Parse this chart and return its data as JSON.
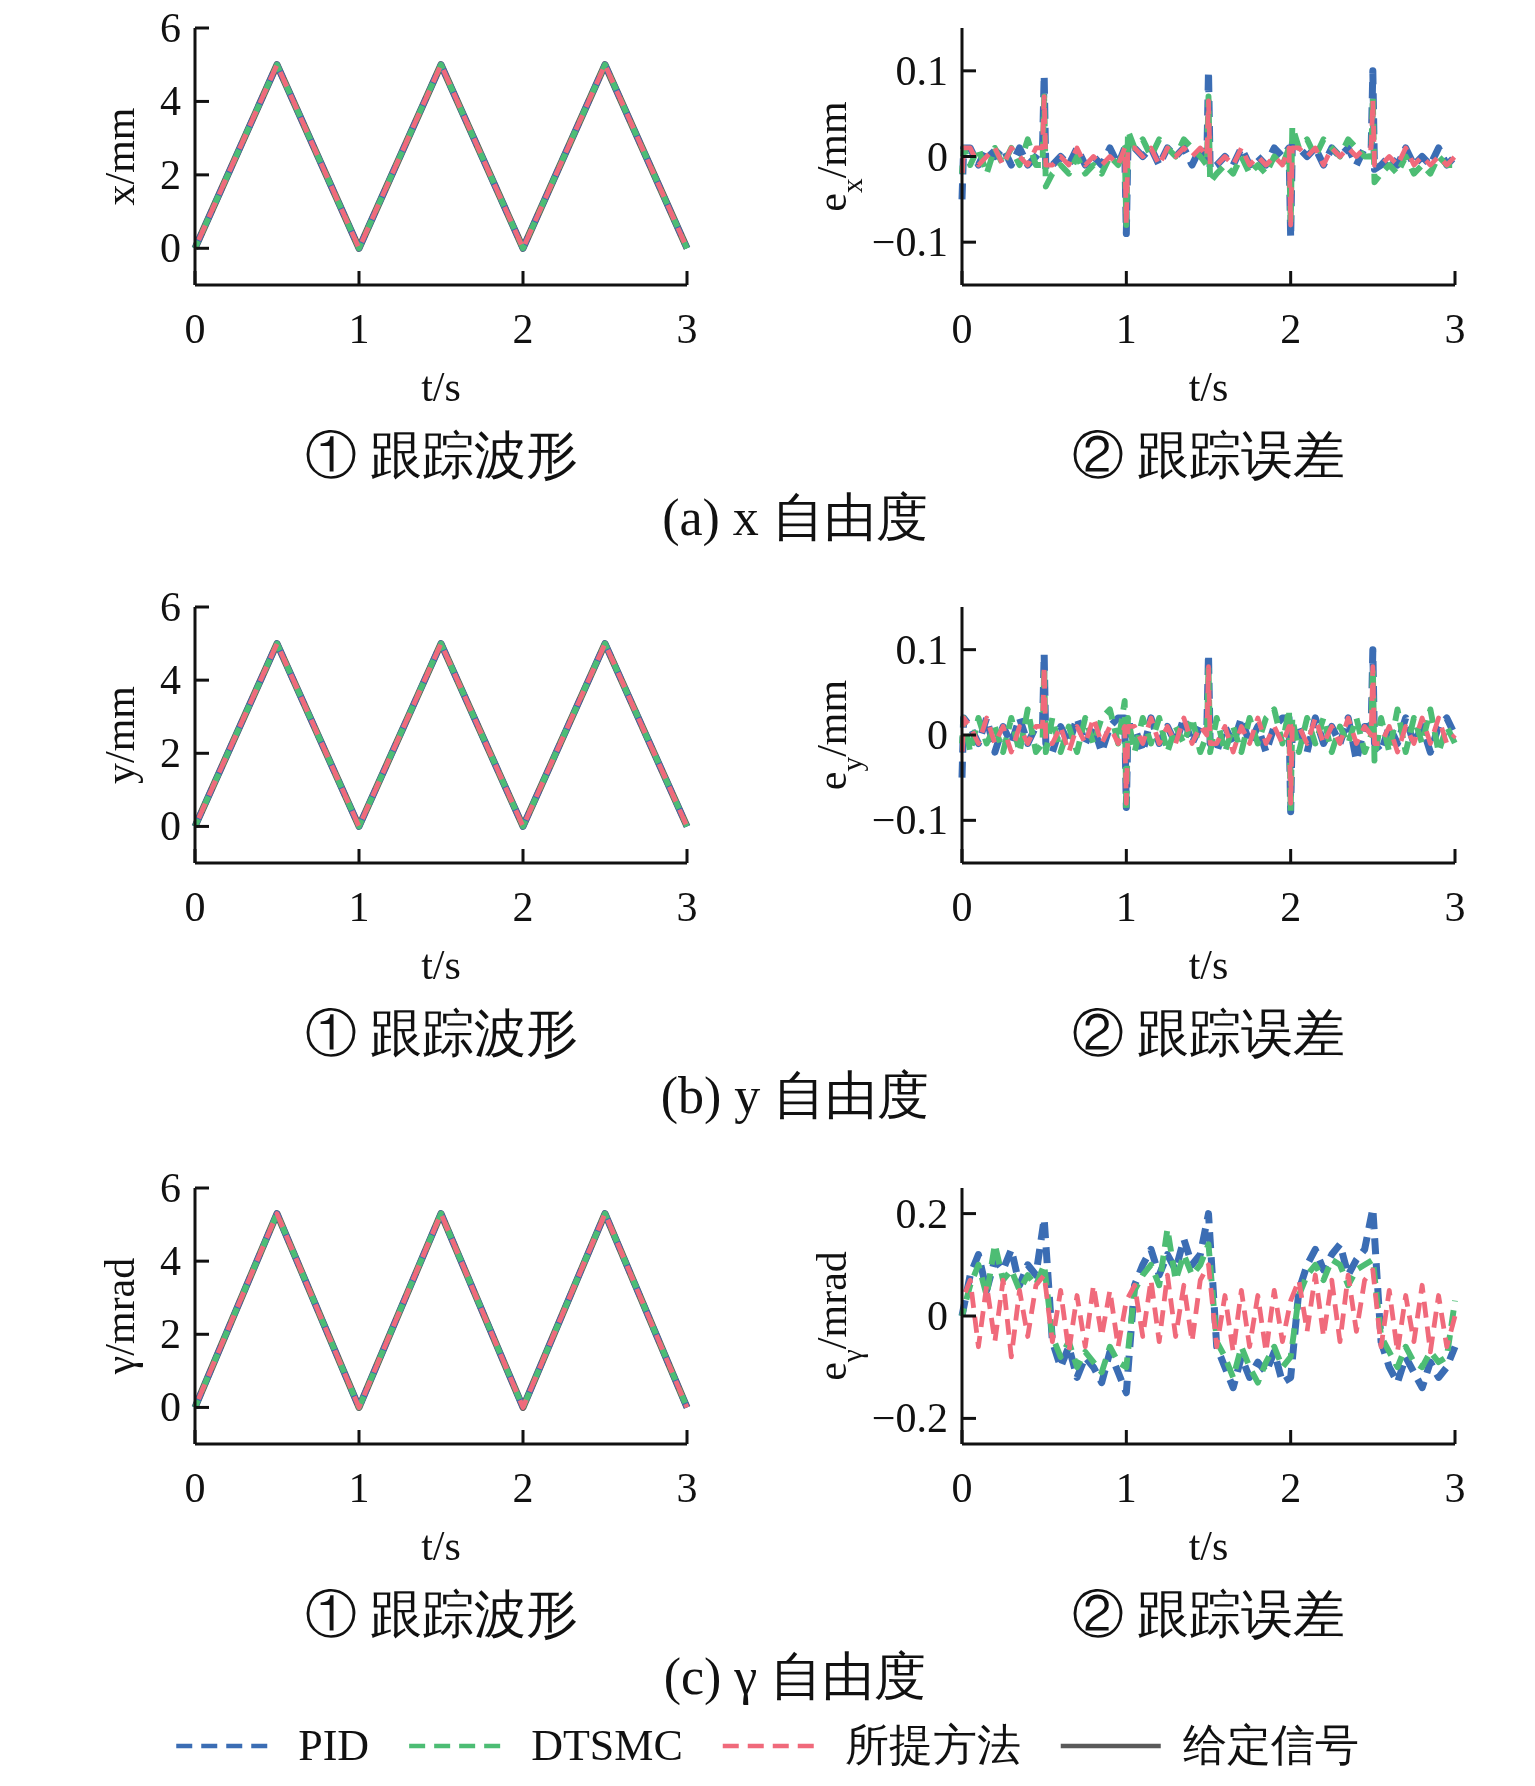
{
  "chart_data": [
    {
      "type": "line",
      "title": "① 跟踪波形",
      "xlabel": "t/s",
      "ylabel": "x/mm",
      "annotations": [
        "(a) x 自由度"
      ],
      "xlim": [
        0,
        3
      ],
      "xticks": [
        0,
        1,
        2,
        3
      ],
      "ylim": [
        -1,
        6
      ],
      "yticks": [
        0,
        2,
        4,
        6
      ],
      "x": [
        0,
        0.5,
        1,
        1.5,
        2,
        2.5,
        3
      ],
      "series": [
        {
          "color": "#3b6db4",
          "line_style": "dashed",
          "values": [
            0,
            5,
            0,
            5,
            0,
            5,
            0
          ]
        },
        {
          "color": "#4dbd74",
          "line_style": "dashed",
          "values": [
            0,
            5,
            0,
            5,
            0,
            5,
            0
          ]
        },
        {
          "color": "#f06a7b",
          "line_style": "dashed",
          "values": [
            0,
            5,
            0,
            5,
            0,
            5,
            0
          ]
        },
        {
          "color": "#5a5a5a",
          "line_style": "solid",
          "values": [
            0,
            5,
            0,
            5,
            0,
            5,
            0
          ]
        }
      ]
    },
    {
      "type": "line",
      "title": "② 跟踪误差",
      "xlabel": "t/s",
      "ylabel": "e$_{x}$/mm",
      "xlim": [
        0,
        3
      ],
      "xticks": [
        0,
        1,
        2,
        3
      ],
      "ylim": [
        -0.15,
        0.15
      ],
      "yticks": [
        -0.1,
        0,
        0.1
      ],
      "x": [
        0,
        0.01,
        0.05,
        0.1,
        0.15,
        0.2,
        0.25,
        0.3,
        0.35,
        0.4,
        0.45,
        0.49,
        0.5,
        0.51,
        0.55,
        0.6,
        0.65,
        0.7,
        0.75,
        0.8,
        0.85,
        0.9,
        0.95,
        0.99,
        1.0,
        1.01,
        1.05,
        1.1,
        1.15,
        1.2,
        1.25,
        1.3,
        1.35,
        1.4,
        1.45,
        1.49,
        1.5,
        1.51,
        1.55,
        1.6,
        1.65,
        1.7,
        1.75,
        1.8,
        1.85,
        1.9,
        1.95,
        1.99,
        2.0,
        2.01,
        2.05,
        2.1,
        2.15,
        2.2,
        2.25,
        2.3,
        2.35,
        2.4,
        2.45,
        2.49,
        2.5,
        2.51,
        2.55,
        2.6,
        2.65,
        2.7,
        2.75,
        2.8,
        2.85,
        2.9,
        2.95,
        3.0
      ],
      "series": [
        {
          "color": "#3b6db4",
          "line_style": "dashed",
          "values": [
            -0.05,
            0.01,
            0.01,
            -0.01,
            0.01,
            0,
            0.01,
            -0.01,
            0.01,
            -0.01,
            0,
            0.01,
            0.095,
            -0.015,
            -0.01,
            0,
            -0.01,
            0.01,
            -0.01,
            0,
            -0.01,
            0.01,
            -0.01,
            0.01,
            -0.09,
            0.015,
            0.01,
            0,
            0.01,
            -0.01,
            0.01,
            0,
            0.01,
            -0.01,
            0.01,
            0,
            0.1,
            -0.015,
            -0.01,
            0,
            -0.01,
            0.01,
            -0.01,
            0,
            -0.01,
            0.01,
            0,
            0.01,
            -0.095,
            0.015,
            0.01,
            0,
            0.01,
            -0.01,
            0.01,
            0,
            0.01,
            -0.01,
            0.01,
            0.01,
            0.1,
            -0.015,
            -0.01,
            0,
            -0.01,
            0.01,
            -0.01,
            0,
            -0.01,
            0.01,
            -0.01,
            0
          ]
        },
        {
          "color": "#4dbd74",
          "line_style": "dashed",
          "values": [
            -0.02,
            0.01,
            -0.01,
            0.01,
            -0.02,
            0.01,
            -0.01,
            0.01,
            -0.01,
            0.02,
            -0.01,
            -0.01,
            0.07,
            -0.035,
            -0.02,
            -0.01,
            -0.02,
            0,
            -0.02,
            -0.01,
            -0.02,
            0,
            -0.01,
            0.01,
            -0.08,
            0.03,
            0.01,
            0.02,
            0,
            0.02,
            0.01,
            0,
            0.02,
            0.01,
            0,
            -0.01,
            0.07,
            -0.03,
            -0.02,
            -0.01,
            -0.02,
            0,
            -0.02,
            -0.01,
            -0.02,
            0,
            -0.01,
            0.01,
            -0.08,
            0.035,
            0.01,
            0.02,
            0,
            0.02,
            0.01,
            0,
            0.02,
            0.01,
            0,
            0,
            0.07,
            -0.03,
            -0.02,
            -0.01,
            -0.02,
            0,
            -0.02,
            -0.01,
            -0.02,
            0,
            -0.01,
            -0.01
          ]
        },
        {
          "color": "#f06a7b",
          "line_style": "dashed",
          "values": [
            -0.03,
            0.01,
            0.01,
            -0.01,
            0,
            0.01,
            -0.01,
            0.01,
            0,
            -0.01,
            0.01,
            0.01,
            0.07,
            -0.01,
            -0.01,
            0,
            -0.01,
            0.01,
            -0.01,
            0,
            -0.01,
            0,
            -0.01,
            0.01,
            -0.08,
            0.01,
            0.01,
            0,
            0.01,
            -0.01,
            0.01,
            0,
            0.01,
            0,
            0.01,
            0,
            0.065,
            -0.01,
            -0.01,
            0,
            -0.01,
            0.01,
            -0.01,
            0,
            -0.01,
            0,
            -0.01,
            0.01,
            -0.08,
            0.01,
            0.01,
            0,
            0.01,
            -0.01,
            0.01,
            0,
            0.01,
            0,
            0.01,
            0.01,
            0.065,
            -0.01,
            -0.01,
            0,
            -0.01,
            0.01,
            -0.01,
            0,
            -0.01,
            0,
            -0.01,
            0
          ]
        }
      ]
    },
    {
      "type": "line",
      "title": "① 跟踪波形",
      "xlabel": "t/s",
      "ylabel": "y/mm",
      "annotations": [
        "(b) y 自由度"
      ],
      "xlim": [
        0,
        3
      ],
      "xticks": [
        0,
        1,
        2,
        3
      ],
      "ylim": [
        -1,
        6
      ],
      "yticks": [
        0,
        2,
        4,
        6
      ],
      "x": [
        0,
        0.5,
        1,
        1.5,
        2,
        2.5,
        3
      ],
      "series": [
        {
          "color": "#3b6db4",
          "line_style": "dashed",
          "values": [
            0,
            5,
            0,
            5,
            0,
            5,
            0
          ]
        },
        {
          "color": "#4dbd74",
          "line_style": "dashed",
          "values": [
            0,
            5,
            0,
            5,
            0,
            5,
            0
          ]
        },
        {
          "color": "#f06a7b",
          "line_style": "dashed",
          "values": [
            0,
            5,
            0,
            5,
            0,
            5,
            0
          ]
        },
        {
          "color": "#5a5a5a",
          "line_style": "solid",
          "values": [
            0,
            5,
            0,
            5,
            0,
            5,
            0
          ]
        }
      ]
    },
    {
      "type": "line",
      "title": "② 跟踪误差",
      "xlabel": "t/s",
      "ylabel": "e$_{y}$/mm",
      "xlim": [
        0,
        3
      ],
      "xticks": [
        0,
        1,
        2,
        3
      ],
      "ylim": [
        -0.15,
        0.15
      ],
      "yticks": [
        -0.1,
        0,
        0.1
      ],
      "x": [
        0,
        0.01,
        0.05,
        0.1,
        0.15,
        0.2,
        0.25,
        0.3,
        0.35,
        0.4,
        0.45,
        0.49,
        0.5,
        0.51,
        0.55,
        0.6,
        0.65,
        0.7,
        0.75,
        0.8,
        0.85,
        0.9,
        0.95,
        0.99,
        1.0,
        1.01,
        1.05,
        1.1,
        1.15,
        1.2,
        1.25,
        1.3,
        1.35,
        1.4,
        1.45,
        1.49,
        1.5,
        1.51,
        1.55,
        1.6,
        1.65,
        1.7,
        1.75,
        1.8,
        1.85,
        1.9,
        1.95,
        1.99,
        2.0,
        2.01,
        2.05,
        2.1,
        2.15,
        2.2,
        2.25,
        2.3,
        2.35,
        2.4,
        2.45,
        2.49,
        2.5,
        2.51,
        2.55,
        2.6,
        2.65,
        2.7,
        2.75,
        2.8,
        2.85,
        2.9,
        2.95,
        3.0
      ],
      "series": [
        {
          "color": "#3b6db4",
          "line_style": "dashed",
          "values": [
            -0.05,
            0.02,
            0.01,
            -0.01,
            0.02,
            -0.02,
            0.01,
            -0.01,
            0.02,
            -0.01,
            0.01,
            0.01,
            0.095,
            -0.01,
            -0.02,
            0.01,
            -0.01,
            0.02,
            -0.01,
            0.01,
            -0.02,
            0.01,
            0.02,
            0.02,
            -0.085,
            0.01,
            0.01,
            -0.02,
            0.02,
            -0.01,
            0.01,
            -0.01,
            0.02,
            -0.01,
            0.01,
            0.01,
            0.095,
            -0.01,
            -0.02,
            0.01,
            -0.01,
            0.02,
            -0.01,
            0.01,
            -0.02,
            0.01,
            0.02,
            0.02,
            -0.09,
            0.01,
            0.01,
            -0.02,
            0.02,
            -0.01,
            0.01,
            -0.01,
            0.02,
            -0.03,
            0.01,
            0.01,
            0.1,
            -0.01,
            -0.02,
            0.01,
            -0.01,
            0.02,
            -0.01,
            0.01,
            -0.02,
            0.01,
            0.02,
            0
          ]
        },
        {
          "color": "#4dbd74",
          "line_style": "dashed",
          "values": [
            -0.01,
            0.02,
            -0.02,
            0.02,
            -0.01,
            0.01,
            -0.02,
            0.02,
            -0.02,
            0.03,
            -0.02,
            -0.01,
            0.08,
            -0.02,
            0.02,
            -0.02,
            0.01,
            -0.02,
            0.02,
            -0.01,
            0.02,
            0.03,
            -0.01,
            0.04,
            -0.09,
            0.02,
            -0.02,
            0.02,
            -0.01,
            0.02,
            -0.02,
            0.01,
            -0.01,
            0.02,
            -0.02,
            0,
            0.08,
            -0.02,
            0.02,
            -0.02,
            0.01,
            -0.02,
            0.02,
            -0.01,
            0.02,
            0.03,
            -0.01,
            0.03,
            -0.09,
            0.02,
            -0.02,
            0.02,
            -0.01,
            0.02,
            -0.02,
            0.01,
            -0.01,
            0.02,
            -0.02,
            0,
            0.08,
            -0.03,
            0.02,
            -0.02,
            0.03,
            -0.02,
            0.02,
            -0.01,
            0.03,
            -0.02,
            0.01,
            -0.01
          ]
        },
        {
          "color": "#f06a7b",
          "line_style": "dashed",
          "values": [
            -0.03,
            0.02,
            0.01,
            -0.01,
            0.02,
            -0.01,
            0.01,
            -0.02,
            0.01,
            -0.01,
            0.01,
            0.01,
            0.08,
            -0.01,
            -0.01,
            0.01,
            -0.02,
            0.01,
            -0.01,
            0.02,
            -0.01,
            0.01,
            -0.01,
            0.01,
            -0.08,
            0.01,
            0.01,
            -0.01,
            0.02,
            -0.01,
            0.01,
            -0.01,
            0.02,
            -0.01,
            0.01,
            0,
            0.08,
            -0.01,
            -0.01,
            0.01,
            -0.02,
            0.01,
            -0.01,
            0.02,
            -0.01,
            0.01,
            -0.01,
            0.01,
            -0.08,
            0.01,
            0.01,
            -0.01,
            0.02,
            -0.01,
            0.01,
            -0.01,
            0.02,
            -0.01,
            0.01,
            0,
            0.08,
            -0.01,
            -0.01,
            0.01,
            -0.02,
            0.01,
            -0.01,
            0.02,
            -0.01,
            0.02,
            -0.01,
            0
          ]
        }
      ]
    },
    {
      "type": "line",
      "title": "① 跟踪波形",
      "xlabel": "t/s",
      "ylabel": "γ/mrad",
      "annotations": [
        "(c) γ 自由度"
      ],
      "legend": "bottom",
      "xlim": [
        0,
        3
      ],
      "xticks": [
        0,
        1,
        2,
        3
      ],
      "ylim": [
        -1,
        6
      ],
      "yticks": [
        0,
        2,
        4,
        6
      ],
      "x": [
        0,
        0.5,
        1,
        1.5,
        2,
        2.5,
        3
      ],
      "series": [
        {
          "name": "PID",
          "color": "#3b6db4",
          "line_style": "dashed",
          "values": [
            0,
            5.3,
            0,
            5.3,
            0,
            5.3,
            0
          ]
        },
        {
          "name": "DTSMC",
          "color": "#4dbd74",
          "line_style": "dashed",
          "values": [
            0,
            5.3,
            0,
            5.3,
            0,
            5.3,
            0
          ]
        },
        {
          "name": "所提方法",
          "color": "#f06a7b",
          "line_style": "dashed",
          "values": [
            0,
            5.3,
            0,
            5.3,
            0,
            5.3,
            0
          ]
        },
        {
          "name": "给定信号",
          "color": "#5a5a5a",
          "line_style": "solid",
          "values": [
            0,
            5.3,
            0,
            5.3,
            0,
            5.3,
            0
          ]
        }
      ]
    },
    {
      "type": "line",
      "title": "② 跟踪误差",
      "xlabel": "t/s",
      "ylabel": "e$_{γ}$/mrad",
      "xlim": [
        0,
        3
      ],
      "xticks": [
        0,
        1,
        2,
        3
      ],
      "ylim": [
        -0.25,
        0.25
      ],
      "yticks": [
        -0.2,
        0,
        0.2
      ],
      "x": [
        0,
        0.05,
        0.1,
        0.15,
        0.2,
        0.25,
        0.3,
        0.35,
        0.4,
        0.45,
        0.5,
        0.55,
        0.6,
        0.65,
        0.7,
        0.75,
        0.8,
        0.85,
        0.9,
        0.95,
        1.0,
        1.05,
        1.1,
        1.15,
        1.2,
        1.25,
        1.3,
        1.35,
        1.4,
        1.45,
        1.5,
        1.55,
        1.6,
        1.65,
        1.7,
        1.75,
        1.8,
        1.85,
        1.9,
        1.95,
        2.0,
        2.05,
        2.1,
        2.15,
        2.2,
        2.25,
        2.3,
        2.35,
        2.4,
        2.45,
        2.5,
        2.55,
        2.6,
        2.65,
        2.7,
        2.75,
        2.8,
        2.85,
        2.9,
        2.95,
        3.0
      ],
      "series": [
        {
          "color": "#3b6db4",
          "line_style": "dashed",
          "values": [
            0,
            0.08,
            0.12,
            0.05,
            0.11,
            0.09,
            0.13,
            0.06,
            0.1,
            0.08,
            0.19,
            -0.05,
            -0.1,
            -0.06,
            -0.12,
            -0.08,
            -0.1,
            -0.13,
            -0.07,
            -0.11,
            -0.15,
            0.06,
            0.1,
            0.13,
            0.08,
            0.12,
            0.09,
            0.15,
            0.1,
            0.12,
            0.2,
            -0.06,
            -0.1,
            -0.14,
            -0.08,
            -0.12,
            -0.09,
            -0.11,
            -0.07,
            -0.13,
            -0.12,
            0.05,
            0.1,
            0.13,
            0.09,
            0.12,
            0.14,
            0.08,
            0.11,
            0.13,
            0.21,
            -0.05,
            -0.1,
            -0.13,
            -0.08,
            -0.11,
            -0.14,
            -0.09,
            -0.12,
            -0.1,
            -0.06
          ]
        },
        {
          "color": "#4dbd74",
          "line_style": "dashed",
          "values": [
            0,
            0.06,
            0.1,
            0.04,
            0.14,
            0.07,
            0.09,
            0.05,
            0.08,
            0.06,
            0.1,
            -0.04,
            -0.08,
            -0.05,
            -0.1,
            -0.07,
            -0.09,
            -0.11,
            -0.06,
            -0.09,
            -0.1,
            0.05,
            0.08,
            0.1,
            0.06,
            0.17,
            0.07,
            0.12,
            0.08,
            0.1,
            0.14,
            -0.05,
            -0.08,
            -0.12,
            -0.06,
            -0.1,
            -0.13,
            -0.09,
            -0.06,
            -0.1,
            -0.08,
            0.04,
            0.08,
            0.1,
            0.07,
            0.11,
            0.1,
            0.06,
            0.09,
            0.1,
            0.11,
            -0.04,
            -0.07,
            -0.1,
            -0.06,
            -0.09,
            -0.1,
            -0.07,
            -0.09,
            -0.08,
            0.03
          ]
        },
        {
          "color": "#f06a7b",
          "line_style": "dashed",
          "values": [
            0.03,
            0.07,
            -0.06,
            0.06,
            -0.05,
            0.07,
            -0.08,
            0.05,
            -0.04,
            0.06,
            0.08,
            -0.05,
            0.05,
            -0.07,
            0.04,
            -0.06,
            0.06,
            -0.04,
            0.05,
            -0.06,
            0.03,
            0.06,
            -0.04,
            0.07,
            -0.05,
            0.08,
            -0.04,
            0.06,
            -0.05,
            0.07,
            0.1,
            -0.06,
            0.04,
            -0.07,
            0.05,
            -0.06,
            0.04,
            -0.07,
            0.05,
            -0.05,
            0.03,
            0.07,
            -0.03,
            0.08,
            -0.04,
            0.07,
            -0.05,
            0.08,
            -0.03,
            0.07,
            0.09,
            -0.06,
            0.05,
            -0.07,
            0.04,
            -0.05,
            0.06,
            -0.07,
            0.04,
            -0.06,
            0
          ]
        }
      ]
    }
  ]
}
